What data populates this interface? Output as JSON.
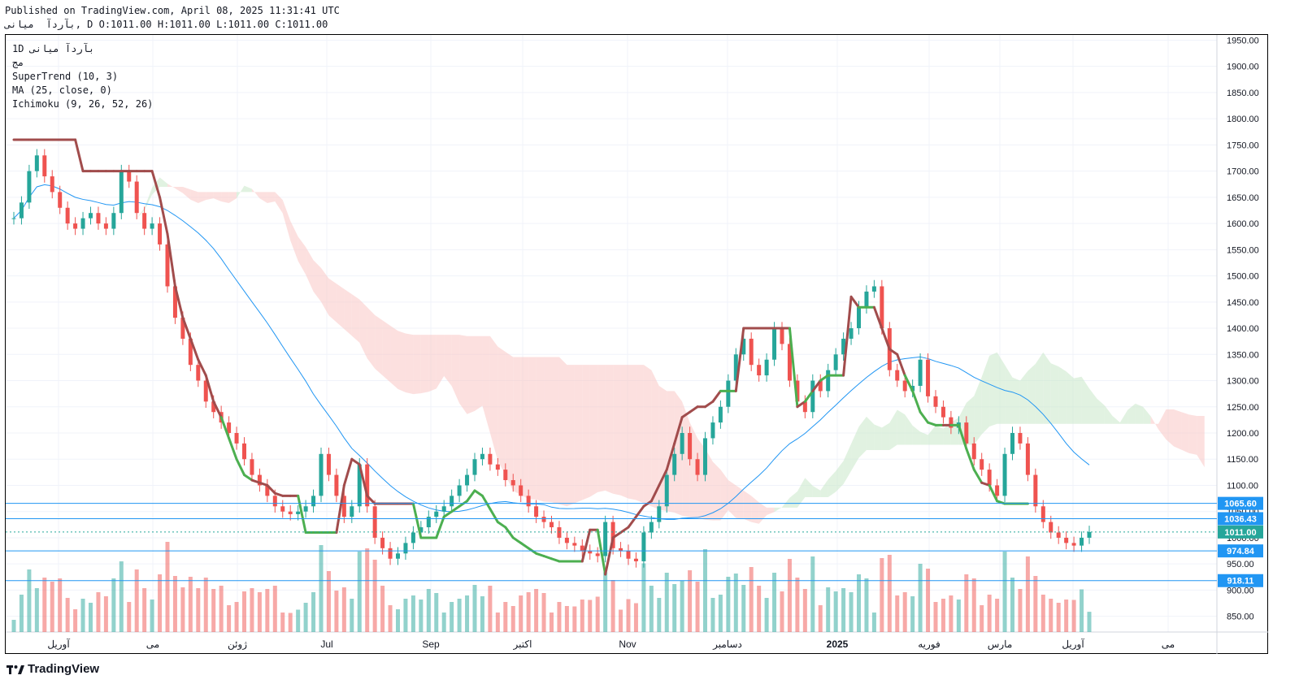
{
  "header": {
    "published": "Published on TradingView.com, April 08, 2025 11:31:41 UTC",
    "symbol": "بآرد‌آ  میانی",
    "ohlc": ", D O:1011.00 H:1011.00 L:1011.00 C:1011.00"
  },
  "legend": {
    "symbol_line": "1D بآرد‌آ میانی",
    "subtitle": "مج",
    "supertrend": "SuperTrend (10, 3)",
    "ma": "MA (25, close, 0)",
    "ichimoku": "Ichimoku (9, 26, 52, 26)"
  },
  "footer": {
    "brand": "TradingView"
  },
  "colors": {
    "up": "#26a69a",
    "down": "#ef5350",
    "supertrend_up": "#4caf50",
    "supertrend_down": "#a14c4c",
    "ma": "#2196f3",
    "cloud_red": "#f9c7c5",
    "cloud_green": "#c9e7c9",
    "price_tag": "#2196f3",
    "last_tag": "#26a69a"
  },
  "chart_data": {
    "type": "candlestick",
    "timeframe": "1D",
    "ylim": [
      820,
      1960
    ],
    "y_ticks": [
      850,
      900,
      950,
      1000,
      1050,
      1100,
      1150,
      1200,
      1250,
      1300,
      1350,
      1400,
      1450,
      1500,
      1550,
      1600,
      1650,
      1700,
      1750,
      1800,
      1850,
      1900,
      1950
    ],
    "x_ticks": [
      "آوریل",
      "می",
      "ژوئن",
      "Jul",
      "Sep",
      "اکتبر",
      "Nov",
      "دسامبر",
      "2025",
      "فوریه",
      "مارس",
      "آوریل",
      "می"
    ],
    "price_levels": [
      {
        "label": "1065.60",
        "value": 1065.6
      },
      {
        "label": "1036.43",
        "value": 1036.43
      },
      {
        "label": "1011.00",
        "value": 1011.0,
        "last": true
      },
      {
        "label": "974.84",
        "value": 974.84
      },
      {
        "label": "918.11",
        "value": 918.11
      }
    ],
    "close": [
      1610,
      1640,
      1700,
      1730,
      1690,
      1660,
      1630,
      1600,
      1590,
      1610,
      1620,
      1600,
      1590,
      1620,
      1700,
      1680,
      1620,
      1590,
      1600,
      1560,
      1480,
      1420,
      1380,
      1330,
      1300,
      1260,
      1240,
      1220,
      1200,
      1180,
      1150,
      1120,
      1100,
      1080,
      1060,
      1050,
      1045,
      1050,
      1060,
      1080,
      1160,
      1120,
      1080,
      1040,
      1060,
      1140,
      1060,
      1000,
      980,
      960,
      970,
      990,
      1010,
      1020,
      1040,
      1050,
      1060,
      1080,
      1100,
      1120,
      1150,
      1160,
      1140,
      1130,
      1110,
      1100,
      1080,
      1060,
      1040,
      1030,
      1020,
      1000,
      990,
      985,
      975,
      970,
      965,
      1030,
      980,
      975,
      960,
      955,
      1010,
      1030,
      1060,
      1120,
      1160,
      1200,
      1150,
      1120,
      1190,
      1220,
      1250,
      1300,
      1350,
      1380,
      1330,
      1310,
      1340,
      1400,
      1370,
      1300,
      1260,
      1240,
      1300,
      1280,
      1320,
      1350,
      1380,
      1400,
      1440,
      1470,
      1480,
      1400,
      1320,
      1300,
      1280,
      1290,
      1340,
      1270,
      1250,
      1230,
      1210,
      1220,
      1180,
      1150,
      1130,
      1100,
      1080,
      1160,
      1200,
      1180,
      1120,
      1060,
      1030,
      1010,
      1000,
      990,
      985,
      1000,
      1011
    ],
    "supertrend": [
      1760,
      1760,
      1760,
      1760,
      1760,
      1760,
      1760,
      1760,
      1760,
      1700,
      1700,
      1700,
      1700,
      1700,
      1700,
      1700,
      1700,
      1700,
      1700,
      1650,
      1580,
      1480,
      1420,
      1380,
      1340,
      1310,
      1260,
      1230,
      1190,
      1150,
      1120,
      1110,
      1105,
      1100,
      1085,
      1080,
      1080,
      1080,
      1010,
      1010,
      1010,
      1010,
      1010,
      1100,
      1150,
      1140,
      1080,
      1065,
      1065,
      1065,
      1065,
      1065,
      1065,
      1000,
      1000,
      1000,
      1040,
      1050,
      1060,
      1070,
      1090,
      1080,
      1055,
      1030,
      1020,
      1000,
      990,
      980,
      970,
      965,
      960,
      955,
      955,
      955,
      955,
      1015,
      1015,
      930,
      1000,
      1010,
      1020,
      1040,
      1060,
      1070,
      1100,
      1130,
      1180,
      1230,
      1240,
      1250,
      1250,
      1260,
      1280,
      1280,
      1280,
      1400,
      1400,
      1400,
      1400,
      1400,
      1400,
      1400,
      1250,
      1260,
      1280,
      1300,
      1310,
      1310,
      1310,
      1460,
      1440,
      1440,
      1440,
      1400,
      1360,
      1350,
      1310,
      1280,
      1240,
      1220,
      1215,
      1215,
      1215,
      1215,
      1170,
      1130,
      1105,
      1100,
      1070,
      1065,
      1065,
      1065,
      1065
    ],
    "volume_note": "volume bars shown beneath candles"
  }
}
